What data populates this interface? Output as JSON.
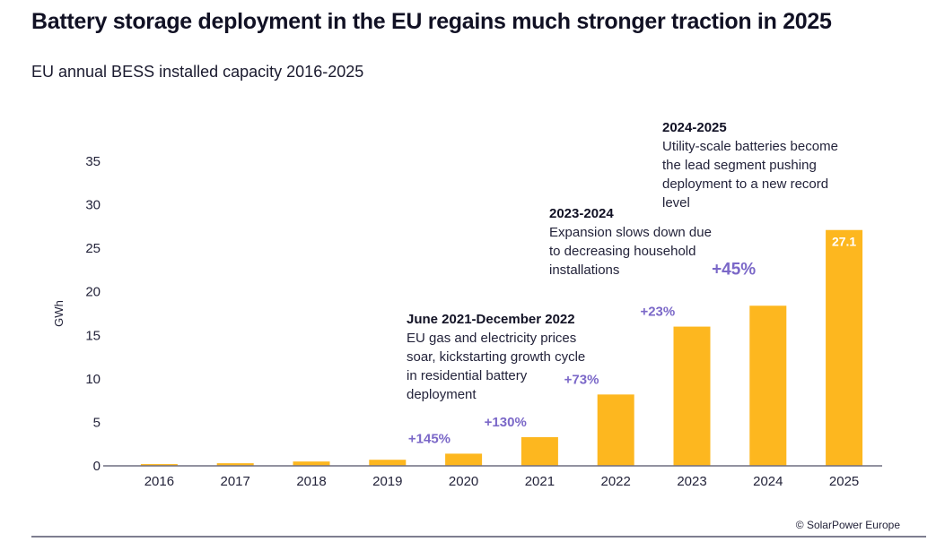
{
  "title": "Battery storage deployment in the EU regains much stronger traction in 2025",
  "subtitle": "EU annual BESS installed capacity 2016-2025",
  "credit": "© SolarPower Europe",
  "colors": {
    "bar": "#FDB71F",
    "growth": "#7B68C8",
    "text": "#23233A"
  },
  "annotations": [
    {
      "heading": "June 2021-December 2022",
      "lines": [
        "EU gas and electricity prices",
        "soar, kickstarting growth cycle",
        "in residential battery",
        "deployment"
      ]
    },
    {
      "heading": "2023-2024",
      "lines": [
        "Expansion slows down due",
        "to decreasing household",
        "installations"
      ]
    },
    {
      "heading": "2024-2025",
      "lines": [
        "Utility-scale batteries become",
        "the lead segment pushing",
        "deployment to a new record",
        "level"
      ]
    }
  ],
  "chart_data": {
    "type": "bar",
    "title": "EU annual BESS installed capacity 2016-2025",
    "xlabel": "",
    "ylabel": "GWh",
    "ylim": [
      0,
      35
    ],
    "yticks": [
      0,
      5,
      10,
      15,
      20,
      25,
      30,
      35
    ],
    "grid": false,
    "categories": [
      "2016",
      "2017",
      "2018",
      "2019",
      "2020",
      "2021",
      "2022",
      "2023",
      "2024",
      "2025"
    ],
    "values": [
      0.2,
      0.3,
      0.5,
      0.7,
      1.4,
      3.3,
      8.2,
      16.0,
      18.4,
      27.1
    ],
    "data_labels": {
      "2025": "27.1"
    },
    "growth_labels": [
      {
        "category": "2020",
        "text": "+145%"
      },
      {
        "category": "2021",
        "text": "+130%"
      },
      {
        "category": "2022",
        "text": "+73%"
      },
      {
        "category": "2023",
        "text": "+23%"
      },
      {
        "category": "2024",
        "text": "+45%",
        "emphasis": true
      }
    ]
  }
}
